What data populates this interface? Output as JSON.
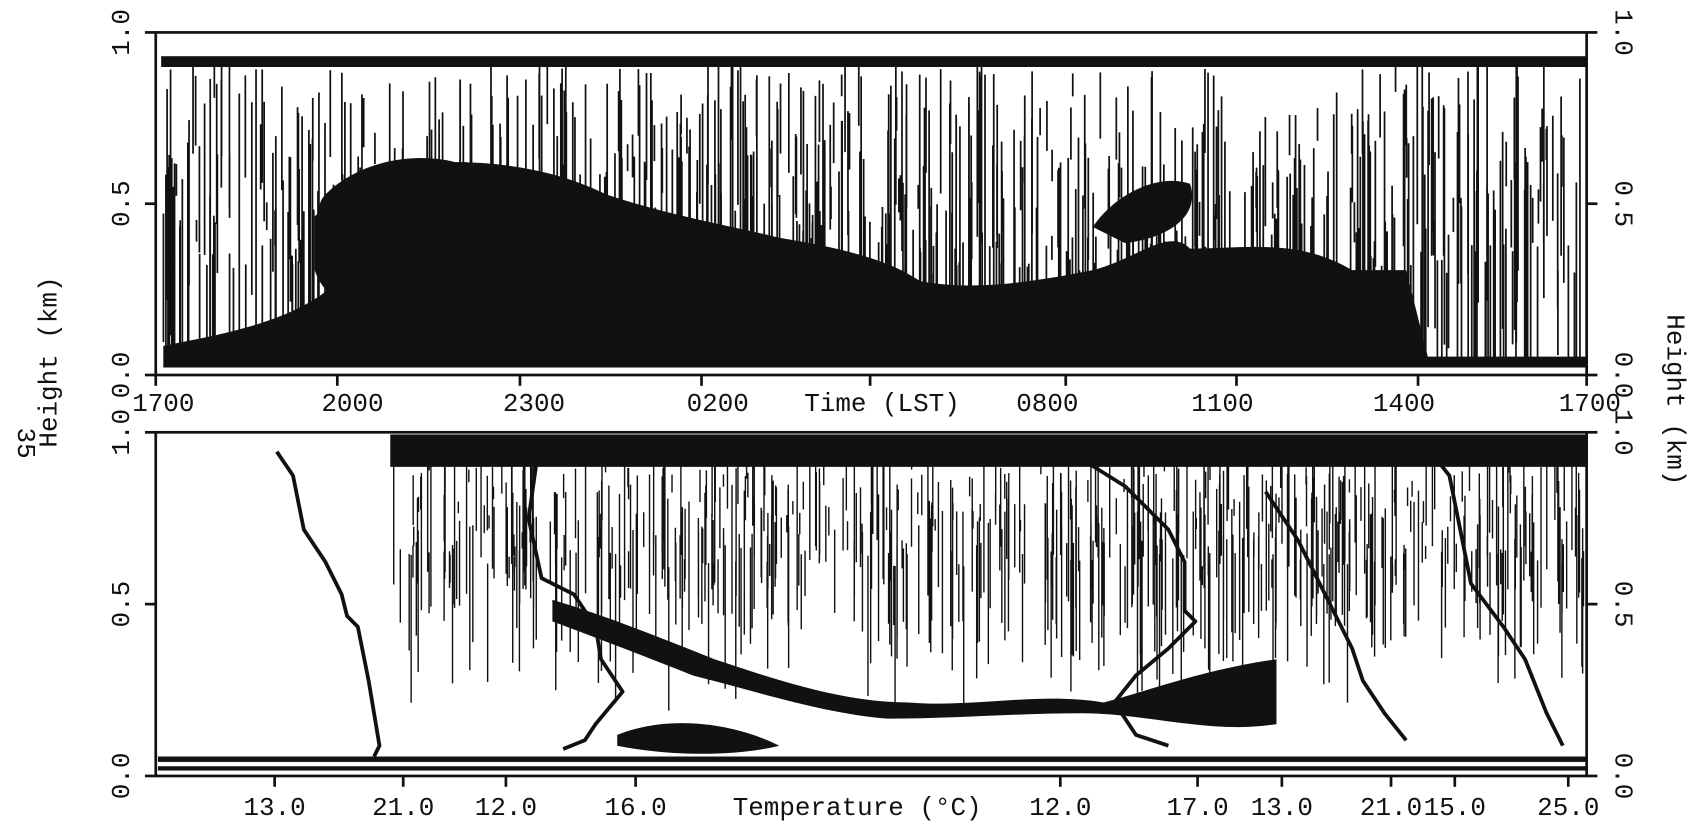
{
  "page_number": "35",
  "left_label": "Height (km)",
  "right_label": "Height (km)",
  "top_panel": {
    "yticks": [
      "0.0",
      "0.5",
      "1.0"
    ],
    "y2ticks": [
      "0.0",
      "0.5",
      "1.0"
    ],
    "xlabel": "Time (LST)",
    "xticks": [
      "1700",
      "2000",
      "2300",
      "0200",
      "0800",
      "1100",
      "1400",
      "1700"
    ]
  },
  "bottom_panel": {
    "yticks": [
      "0.0",
      "0.5",
      "1.0"
    ],
    "y2ticks": [
      "0.0",
      "0.5",
      "1.0"
    ],
    "xlabel": "Temperature (°C)",
    "xticks": [
      "13.0",
      "21.0",
      "12.0",
      "16.0",
      "12.0",
      "17.0",
      "13.0",
      "21.0",
      "15.0",
      "25.0"
    ]
  }
}
